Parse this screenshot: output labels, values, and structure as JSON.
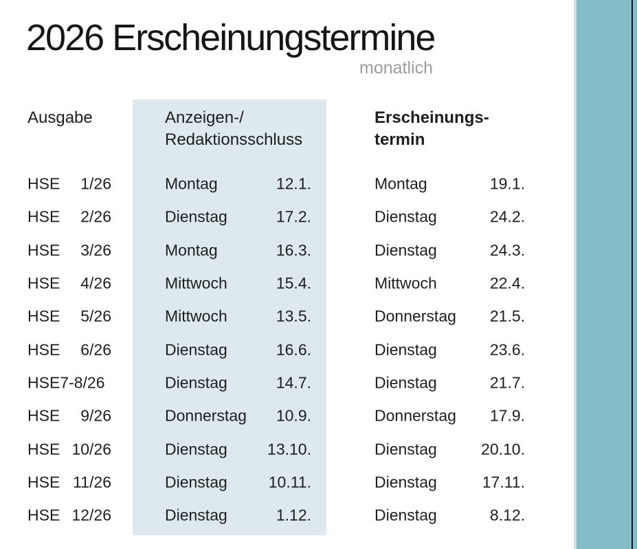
{
  "title": "2026 Erscheinungstermine",
  "subtitle": "monatlich",
  "table": {
    "col1_header": "Ausgabe",
    "col2_header_line1": "Anzeigen-/",
    "col2_header_line2": "Redaktionsschluss",
    "col3_header_line1": "Erscheinungs-",
    "col3_header_line2": "termin",
    "rows": [
      {
        "issue_prefix": "HSE",
        "issue_num": "1/26",
        "deadline_day": "Montag",
        "deadline_date": "12.1.",
        "publish_day": "Montag",
        "publish_date": "19.1."
      },
      {
        "issue_prefix": "HSE",
        "issue_num": "2/26",
        "deadline_day": "Dienstag",
        "deadline_date": "17.2.",
        "publish_day": "Dienstag",
        "publish_date": "24.2."
      },
      {
        "issue_prefix": "HSE",
        "issue_num": "3/26",
        "deadline_day": "Montag",
        "deadline_date": "16.3.",
        "publish_day": "Dienstag",
        "publish_date": "24.3."
      },
      {
        "issue_prefix": "HSE",
        "issue_num": "4/26",
        "deadline_day": "Mittwoch",
        "deadline_date": "15.4.",
        "publish_day": "Mittwoch",
        "publish_date": "22.4."
      },
      {
        "issue_prefix": "HSE",
        "issue_num": "5/26",
        "deadline_day": "Mittwoch",
        "deadline_date": "13.5.",
        "publish_day": "Donnerstag",
        "publish_date": "21.5."
      },
      {
        "issue_prefix": "HSE",
        "issue_num": "6/26",
        "deadline_day": "Dienstag",
        "deadline_date": "16.6.",
        "publish_day": "Dienstag",
        "publish_date": "23.6."
      },
      {
        "issue_prefix": "HSE7-8/26",
        "issue_num": "",
        "deadline_day": "Dienstag",
        "deadline_date": "14.7.",
        "publish_day": "Dienstag",
        "publish_date": "21.7."
      },
      {
        "issue_prefix": "HSE",
        "issue_num": "9/26",
        "deadline_day": "Donnerstag",
        "deadline_date": "10.9.",
        "publish_day": "Donnerstag",
        "publish_date": "17.9."
      },
      {
        "issue_prefix": "HSE",
        "issue_num": "10/26",
        "deadline_day": "Dienstag",
        "deadline_date": "13.10.",
        "publish_day": "Dienstag",
        "publish_date": "20.10."
      },
      {
        "issue_prefix": "HSE",
        "issue_num": "11/26",
        "deadline_day": "Dienstag",
        "deadline_date": "10.11.",
        "publish_day": "Dienstag",
        "publish_date": "17.11."
      },
      {
        "issue_prefix": "HSE",
        "issue_num": "12/26",
        "deadline_day": "Dienstag",
        "deadline_date": "1.12.",
        "publish_day": "Dienstag",
        "publish_date": "8.12."
      }
    ]
  },
  "colors": {
    "panel": "#dde9ee",
    "accent_bar": "#84bdc8",
    "accent_bar_edge": "#cfdee3",
    "accent_bar_line": "#161616",
    "subtitle_gray": "#9b9b9b",
    "text": "#1e1e1e"
  }
}
